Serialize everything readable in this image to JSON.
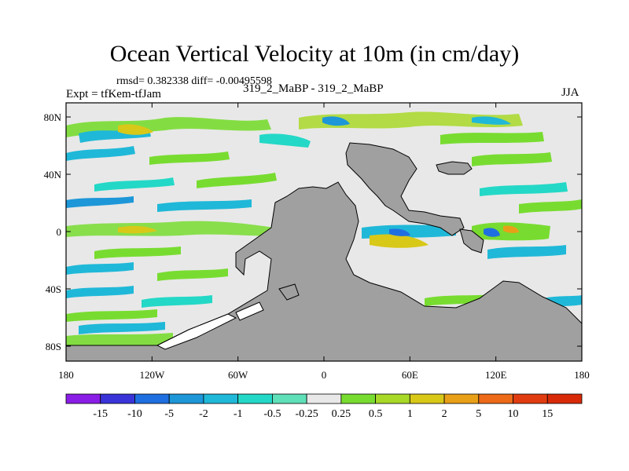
{
  "title": "Ocean Vertical Velocity at 10m (in cm/day)",
  "stats_line": "rmsd= 0.382338 diff= -0.00495598",
  "experiment_line": "Expt = tfKem-tfJam",
  "runs_line": "319_2_MaBP - 319_2_MaBP",
  "season": "JJA",
  "lat_ticks": [
    "80N",
    "40N",
    "0",
    "40S",
    "80S"
  ],
  "lon_ticks": [
    "180",
    "120W",
    "60W",
    "0",
    "60E",
    "120E",
    "180"
  ],
  "colorbar": {
    "labels": [
      "-15",
      "-10",
      "-5",
      "-2",
      "-1",
      "-0.5",
      "-0.25",
      "0.25",
      "0.5",
      "1",
      "2",
      "5",
      "10",
      "15"
    ],
    "colors": [
      "#8a1ee6",
      "#3a34d8",
      "#1f6fe0",
      "#1d97d8",
      "#20b8d8",
      "#23d8c6",
      "#5fe0b8",
      "#e8e8e8",
      "#78dc30",
      "#a8d828",
      "#d8c818",
      "#e8a018",
      "#ec6a18",
      "#e03c10",
      "#d82a08"
    ]
  },
  "land_color": "#a0a0a0",
  "ocean_neutral_color": "#e8e8e8"
}
